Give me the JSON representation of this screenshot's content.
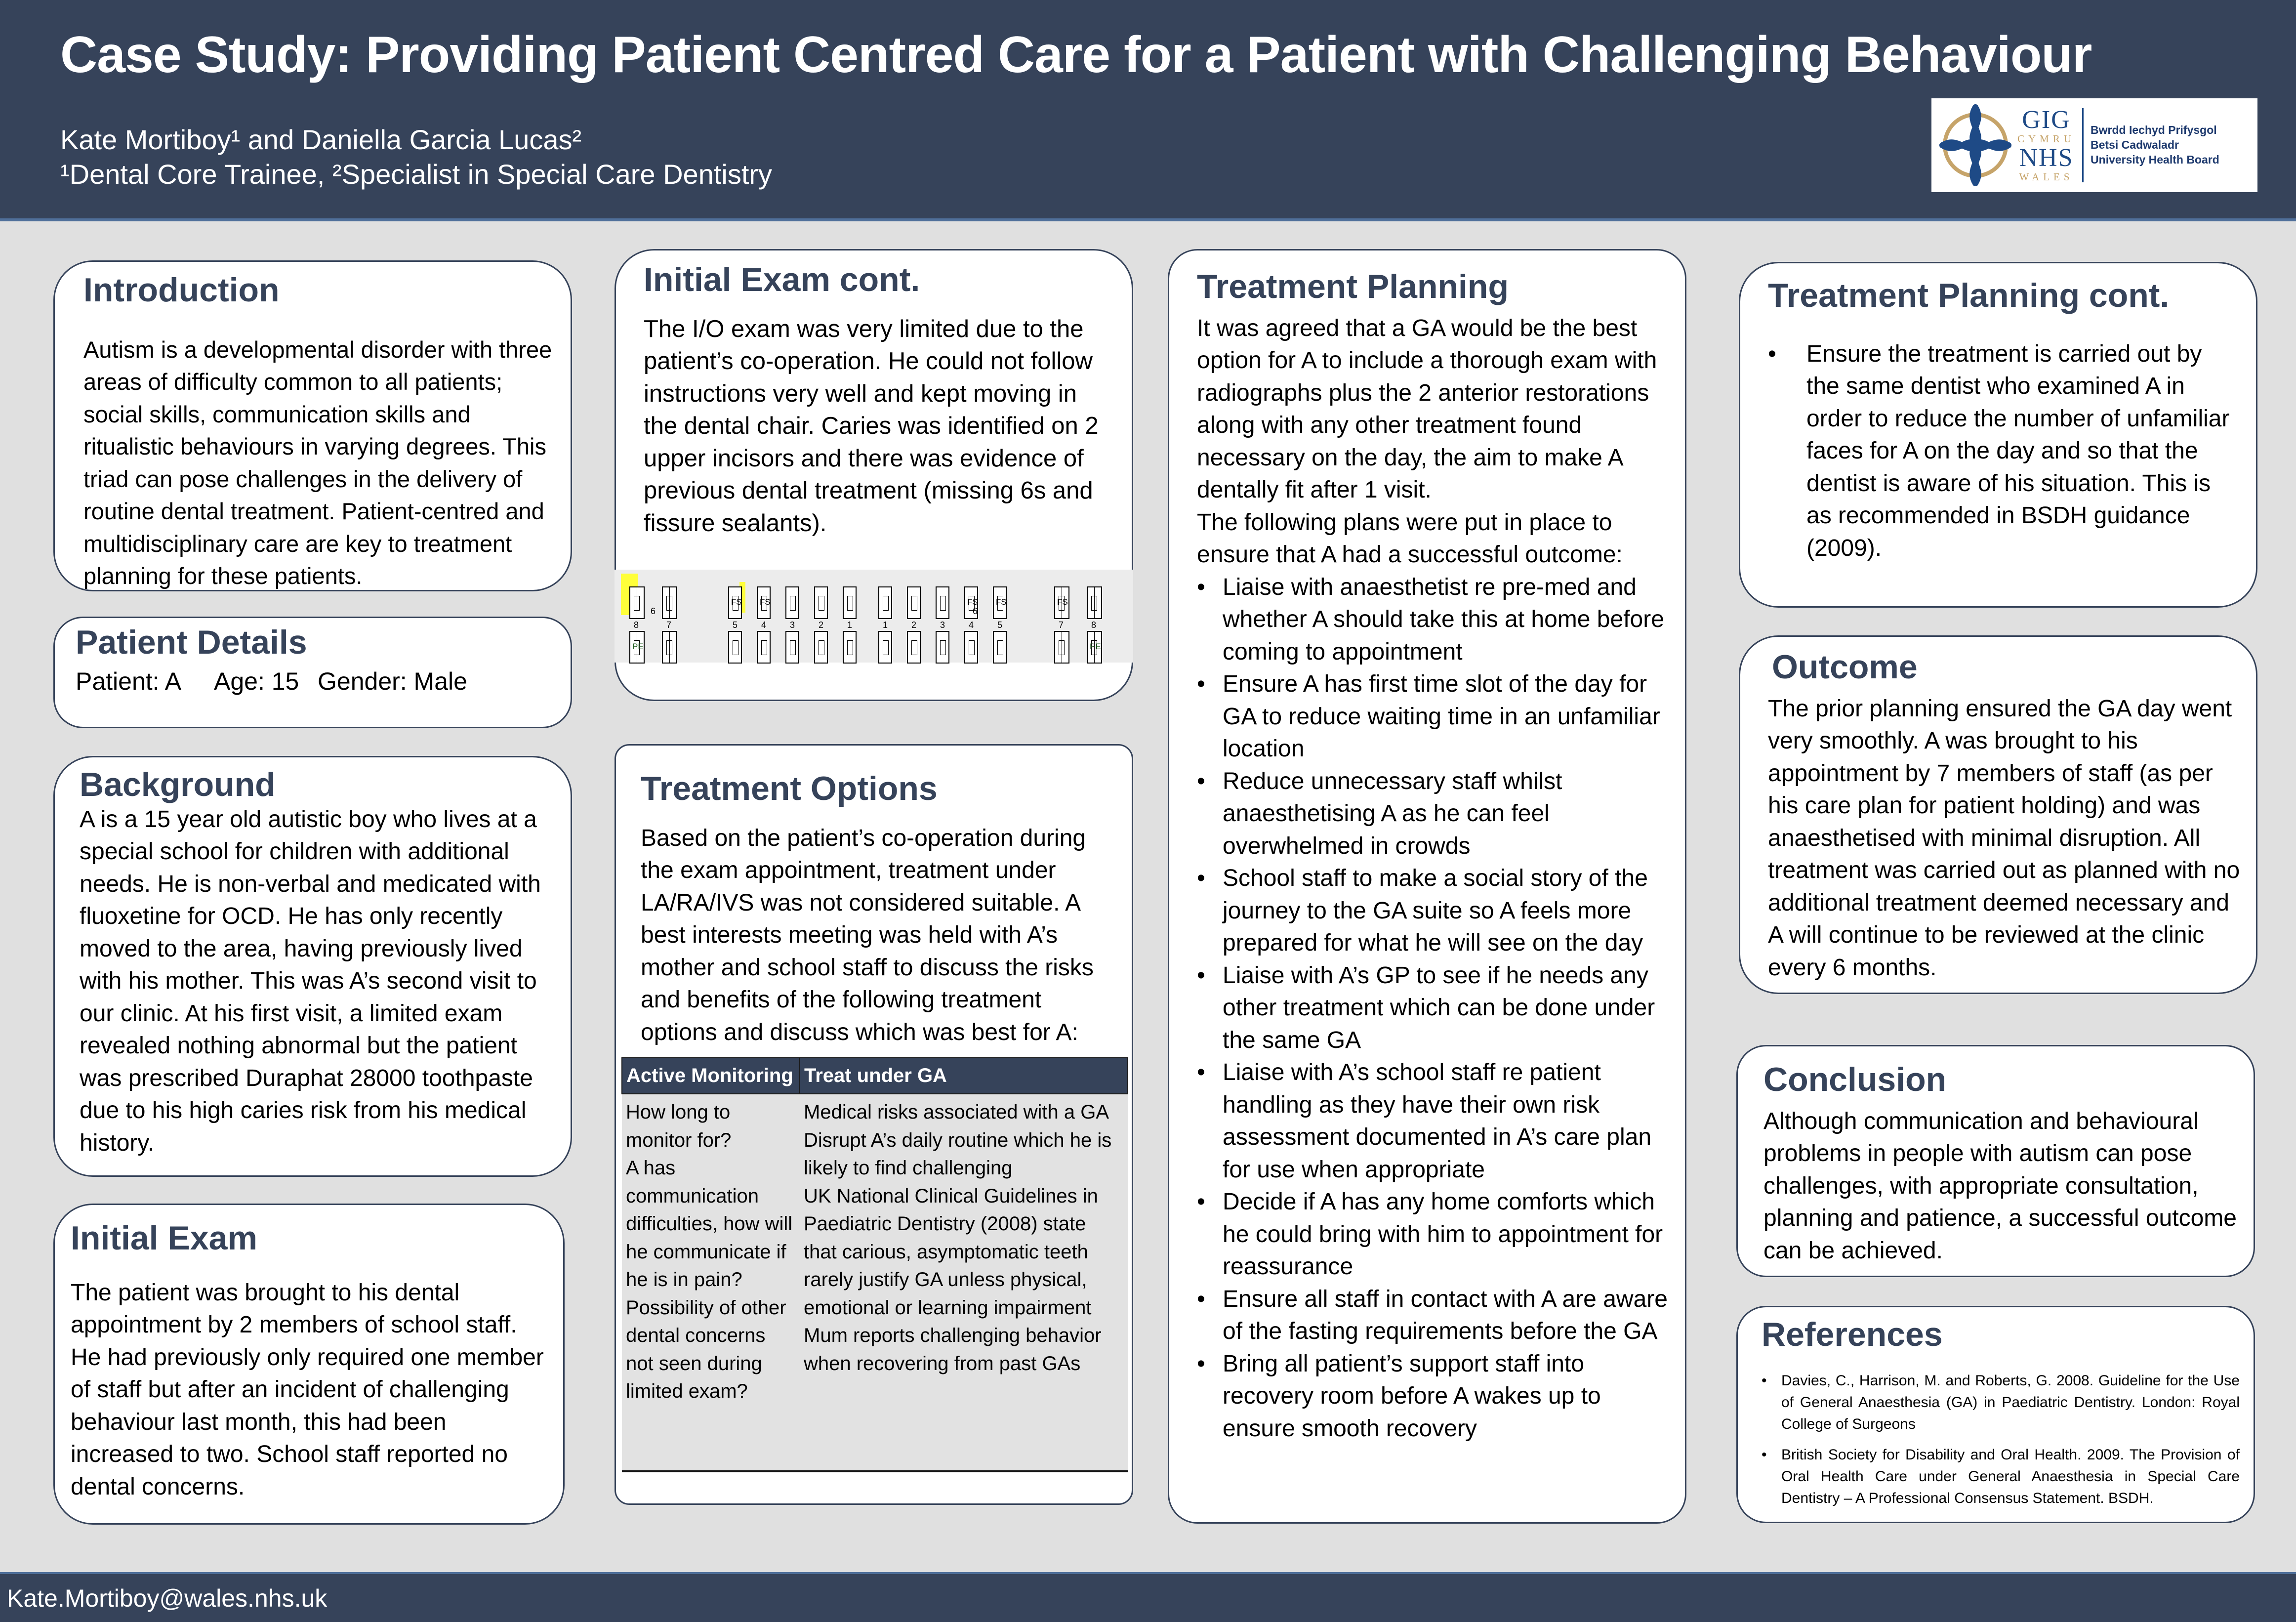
{
  "header": {
    "title": "Case Study: Providing Patient Centred Care for a Patient with Challenging Behaviour",
    "authors": "Kate Mortiboy¹ and Daniella Garcia Lucas²",
    "affiliations": "¹Dental Core Trainee, ²Specialist in Special Care Dentistry",
    "logo": {
      "icon": "celtic-knot-icon",
      "gig": "GIG",
      "cymru": "CYMRU",
      "nhs": "NHS",
      "wales": "WALES",
      "board_line1": "Bwrdd Iechyd Prifysgol",
      "board_line2": "Betsi Cadwaladr",
      "board_line3": "University Health Board"
    }
  },
  "colors": {
    "header_bg": "#36435a",
    "heading": "#36435a",
    "page_bg": "#e0e0e0",
    "highlight": "#ffff3a",
    "table_body_bg": "#e2e2e2"
  },
  "introduction": {
    "heading": "Introduction",
    "body": "Autism is a developmental disorder with three areas of difficulty common to all patients; social skills, communication skills and ritualistic behaviours in varying degrees. This triad can pose challenges in the delivery of routine dental treatment.  Patient-centred and multidisciplinary care are key to treatment planning for these patients."
  },
  "patient_details": {
    "heading": "Patient Details",
    "patient": "Patient: A",
    "age": "Age: 15",
    "gender": "Gender: Male"
  },
  "background": {
    "heading": "Background",
    "body": "A is a 15 year old autistic boy who lives at a special school for children with additional needs. He is non-verbal and medicated with fluoxetine for OCD. He has only recently moved to the area, having previously lived with his mother. This was A’s second visit to our clinic. At his first visit, a limited exam revealed nothing abnormal but the patient was prescribed Duraphat 28000 toothpaste due to his high caries risk from his medical history."
  },
  "initial_exam": {
    "heading": "Initial Exam",
    "body": "The patient was brought to his dental appointment by 2 members of school staff. He had previously only required one member of staff but after an incident of challenging behaviour last month, this had been increased to two. School staff reported no dental concerns."
  },
  "initial_exam_cont": {
    "heading": "Initial Exam cont.",
    "body": "The I/O exam was very limited due to the patient’s co-operation. He could not follow instructions very well and kept moving in the dental chair. Caries was identified on 2 upper incisors and there was evidence of previous dental treatment (missing 6s and fissure sealants)."
  },
  "dental_chart": {
    "numbers_left": [
      "8",
      "7",
      "6",
      "5",
      "4",
      "3",
      "2",
      "1"
    ],
    "numbers_right": [
      "1",
      "2",
      "3",
      "4",
      "5",
      "6",
      "7",
      "8"
    ],
    "upper_marks": [
      {
        "tooth": "UR5",
        "label": "FS"
      },
      {
        "tooth": "UR4",
        "label": "FS"
      },
      {
        "tooth": "UL4",
        "label": "FS"
      },
      {
        "tooth": "UL5",
        "label": "FS"
      },
      {
        "tooth": "UL7",
        "label": "FS"
      }
    ],
    "lower_marks": [
      {
        "tooth": "LR8",
        "label": "PE"
      },
      {
        "tooth": "LL8",
        "label": "PE"
      }
    ],
    "highlighted": [
      "UR8",
      "UR1-UL1 proximal"
    ],
    "missing": [
      "UR6",
      "UL6",
      "LR6",
      "LL6"
    ]
  },
  "treatment_options": {
    "heading": "Treatment Options",
    "body": "Based on the patient’s co-operation during the exam appointment, treatment under LA/RA/IVS was not considered suitable. A best interests meeting was held with A’s mother and school staff to discuss the risks and benefits of the following treatment options and discuss which was best for A:",
    "table": {
      "headers": [
        "Active Monitoring",
        "Treat under GA"
      ],
      "col1": [
        "How long to monitor for?",
        "A has communication difficulties, how will he communicate if he is in pain?",
        "Possibility of other dental concerns not seen during limited exam?"
      ],
      "col2": [
        "Medical risks associated with a GA",
        "Disrupt A’s daily routine which he is likely to find challenging",
        "UK National Clinical Guidelines in Paediatric Dentistry (2008) state that carious, asymptomatic teeth rarely justify GA unless physical, emotional or learning impairment",
        "Mum reports challenging behavior when recovering from past GAs"
      ]
    }
  },
  "treatment_planning": {
    "heading": "Treatment Planning",
    "intro": "It was agreed that a GA would be the best option for A to include a thorough exam with radiographs plus the 2 anterior restorations along with any other treatment found necessary on the day, the aim to make A dentally fit after 1 visit.",
    "lead": "The following plans were put in place to ensure that A had a successful outcome:",
    "items": [
      "Liaise with anaesthetist re pre-med and whether A should take this at home before coming to appointment",
      "Ensure A has first time slot of the day for GA to reduce waiting time in an unfamiliar location",
      "Reduce unnecessary staff whilst anaesthetising A as he can feel overwhelmed in crowds",
      "School staff to make a social story of the journey to the GA suite so A feels more prepared for what he will see on the day",
      "Liaise with A’s GP to see if he needs any other treatment which can be done under the same GA",
      "Liaise with A’s school staff re patient handling as they have their own risk assessment documented in A’s care plan for use when appropriate",
      "Decide if A has any home comforts which he could bring with him to appointment for reassurance",
      "Ensure all staff in contact with A are aware of the fasting requirements before the GA",
      "Bring all patient’s support staff into recovery room before A wakes up to ensure smooth recovery"
    ]
  },
  "treatment_planning_cont": {
    "heading": "Treatment Planning cont.",
    "items": [
      "Ensure the treatment is carried out by the same dentist who examined A in order to reduce the number of unfamiliar faces for A on the day and so that the dentist is aware of his situation. This is as recommended in BSDH guidance (2009)."
    ]
  },
  "outcome": {
    "heading": "Outcome",
    "body": "The prior planning ensured the GA day went very smoothly. A was brought to his appointment by 7 members of staff (as per his care plan for patient holding) and was anaesthetised with minimal disruption. All treatment was carried out as planned with no additional treatment deemed necessary and A will continue to be reviewed at the clinic every 6 months."
  },
  "conclusion": {
    "heading": "Conclusion",
    "body": "Although communication and behavioural problems in people with autism can pose challenges, with appropriate consultation, planning and patience, a successful outcome can be achieved."
  },
  "references": {
    "heading": "References",
    "items": [
      "Davies, C., Harrison, M. and Roberts, G. 2008. Guideline for the Use of General Anaesthesia (GA) in Paediatric Dentistry. London: Royal College of Surgeons",
      "British Society for Disability and Oral Health. 2009. The Provision of Oral Health Care under General Anaesthesia in Special Care Dentistry – A Professional Consensus Statement. BSDH."
    ]
  },
  "footer": {
    "email": "Kate.Mortiboy@wales.nhs.uk"
  }
}
